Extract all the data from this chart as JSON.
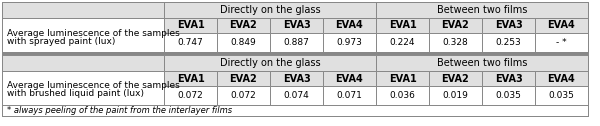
{
  "footnote": "* always peeling of the paint from the interlayer films",
  "section_header_left": "Directly on the glass",
  "section_header_right": "Between two films",
  "eva_labels": [
    "EVA1",
    "EVA2",
    "EVA3",
    "EVA4"
  ],
  "row1_label_line1": "Average luminescence of the samples",
  "row1_label_line2": "with sprayed paint (lux)",
  "row2_label_line1": "Average luminescence of the samples",
  "row2_label_line2": "with brushed liquid paint (lux)",
  "row1_direct": [
    "0.747",
    "0.849",
    "0.887",
    "0.973"
  ],
  "row1_between": [
    "0.224",
    "0.328",
    "0.253",
    "- *"
  ],
  "row2_direct": [
    "0.072",
    "0.072",
    "0.074",
    "0.071"
  ],
  "row2_between": [
    "0.036",
    "0.019",
    "0.035",
    "0.035"
  ],
  "bg_header": "#e0e0e0",
  "bg_white": "#ffffff",
  "border_color": "#888888",
  "text_color": "#000000",
  "font_size": 6.5,
  "header_font_size": 7.0,
  "bold_font_size": 7.0
}
